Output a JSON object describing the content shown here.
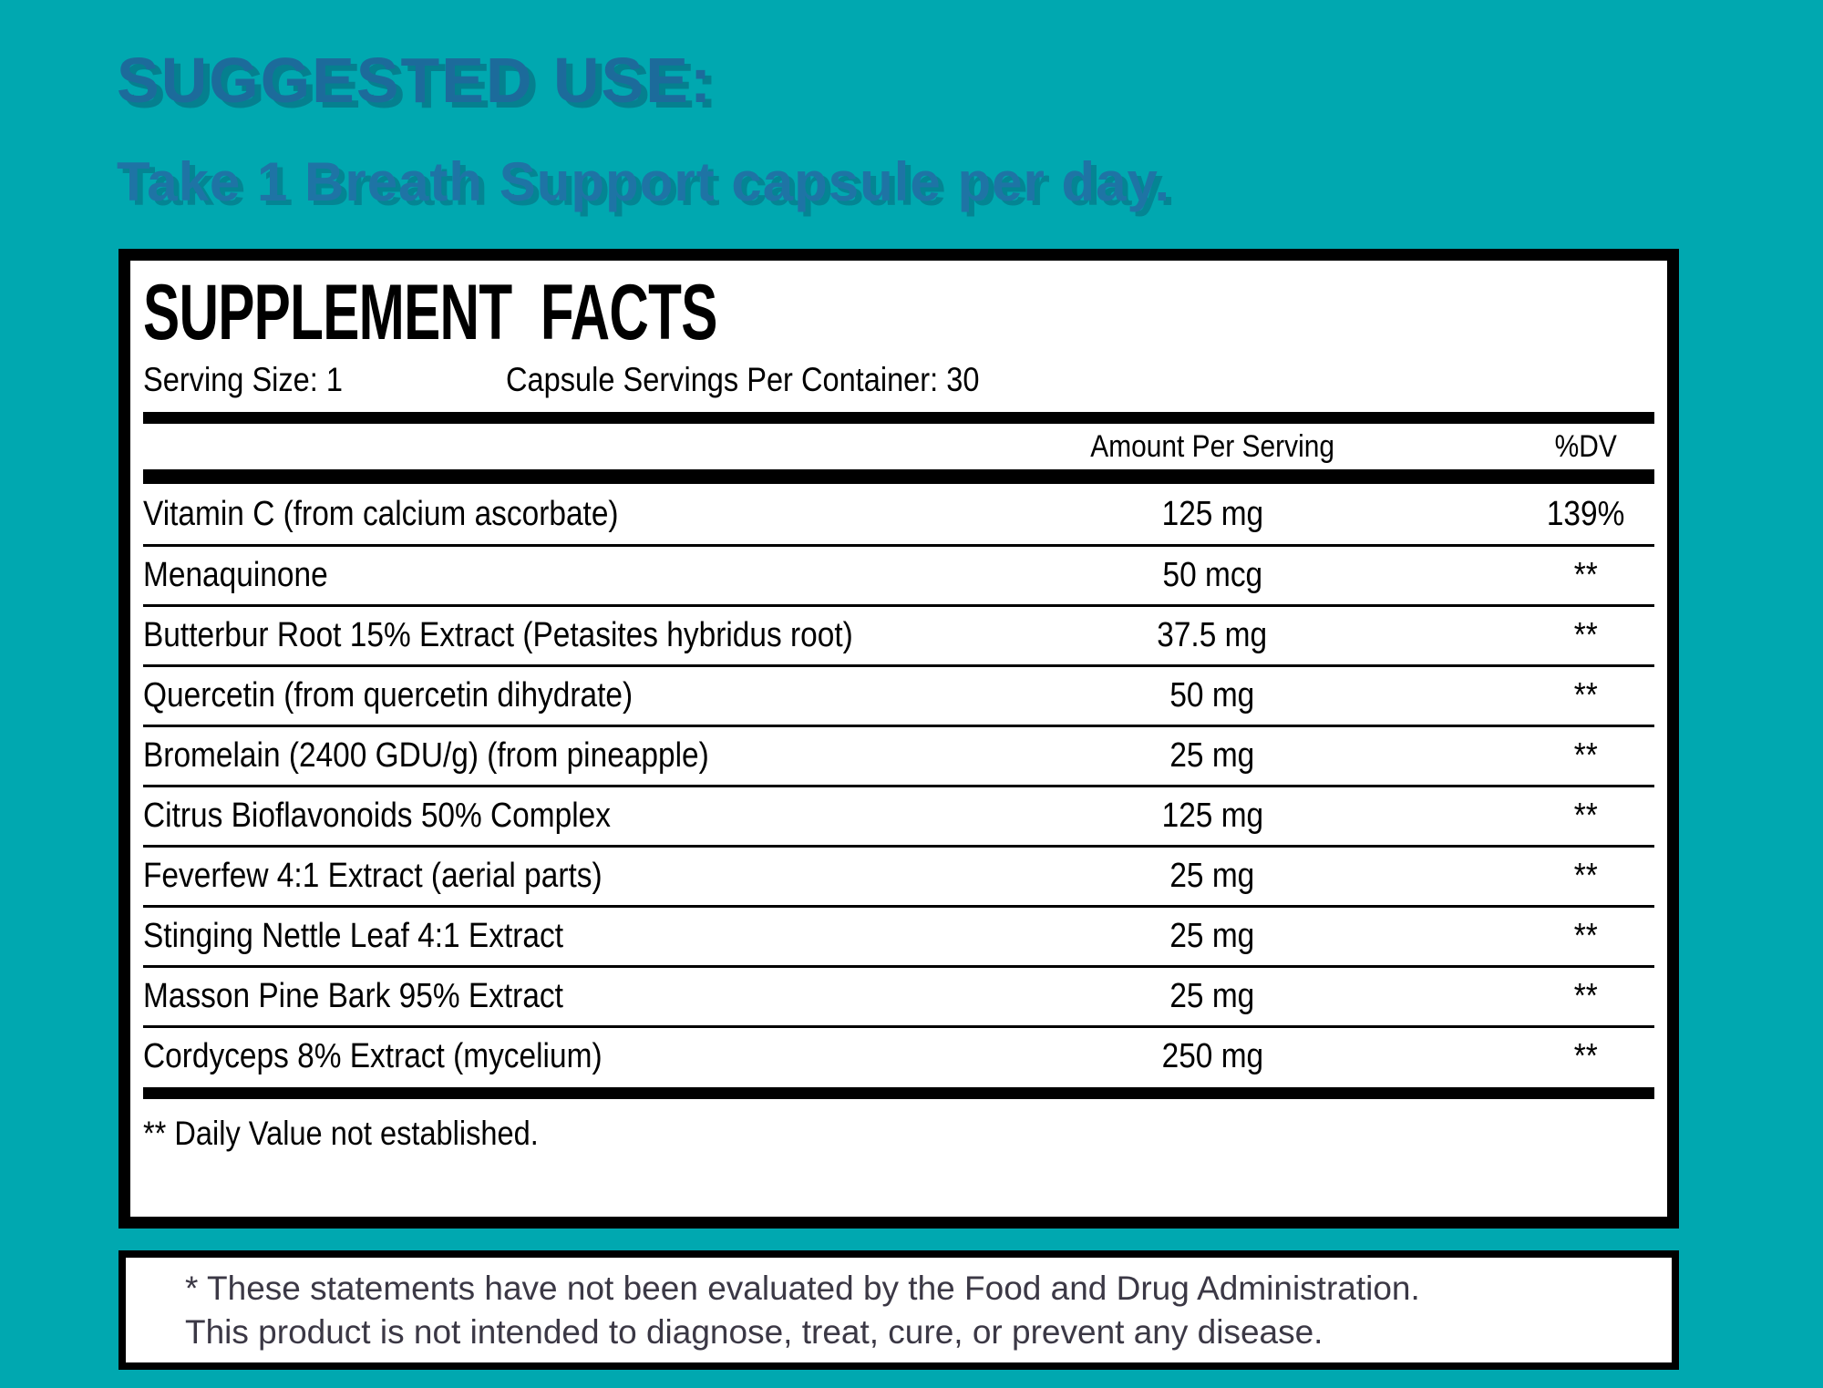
{
  "colors": {
    "background": "#00A8B0",
    "heading": "#1C6B9B",
    "subheading": "#1E74A5",
    "table_text": "#000000",
    "disclaimer_text": "#3B3845"
  },
  "suggested_use": {
    "title": "SUGGESTED USE:",
    "subtitle": "Take 1 Breath Support capsule per day."
  },
  "facts": {
    "title": "SUPPLEMENT FACTS",
    "serving_size": "Serving Size: 1",
    "servings_per_container": "Capsule Servings Per Container: 30",
    "columns": {
      "amount": "Amount Per Serving",
      "dv": "%DV"
    },
    "rows": [
      {
        "name": "Vitamin C (from calcium ascorbate)",
        "amount": "125 mg",
        "dv": "139%"
      },
      {
        "name": "Menaquinone",
        "amount": "50 mcg",
        "dv": "**"
      },
      {
        "name": "Butterbur Root 15% Extract (Petasites hybridus root)",
        "amount": "37.5 mg",
        "dv": "**"
      },
      {
        "name": "Quercetin (from quercetin dihydrate)",
        "amount": "50 mg",
        "dv": "**"
      },
      {
        "name": "Bromelain (2400 GDU/g) (from pineapple)",
        "amount": "25 mg",
        "dv": "**"
      },
      {
        "name": "Citrus Bioflavonoids 50% Complex",
        "amount": "125 mg",
        "dv": "**"
      },
      {
        "name": "Feverfew 4:1 Extract (aerial parts)",
        "amount": "25 mg",
        "dv": "**"
      },
      {
        "name": "Stinging Nettle Leaf 4:1 Extract",
        "amount": "25 mg",
        "dv": "**"
      },
      {
        "name": "Masson Pine Bark 95% Extract",
        "amount": "25 mg",
        "dv": "**"
      },
      {
        "name": "Cordyceps 8% Extract (mycelium)",
        "amount": "250 mg",
        "dv": "**"
      }
    ],
    "footnote": "** Daily Value not established."
  },
  "disclaimer": {
    "line1": "* These statements have not been evaluated by the Food and Drug Administration.",
    "line2": "This product is not intended to diagnose, treat, cure, or prevent any disease."
  }
}
